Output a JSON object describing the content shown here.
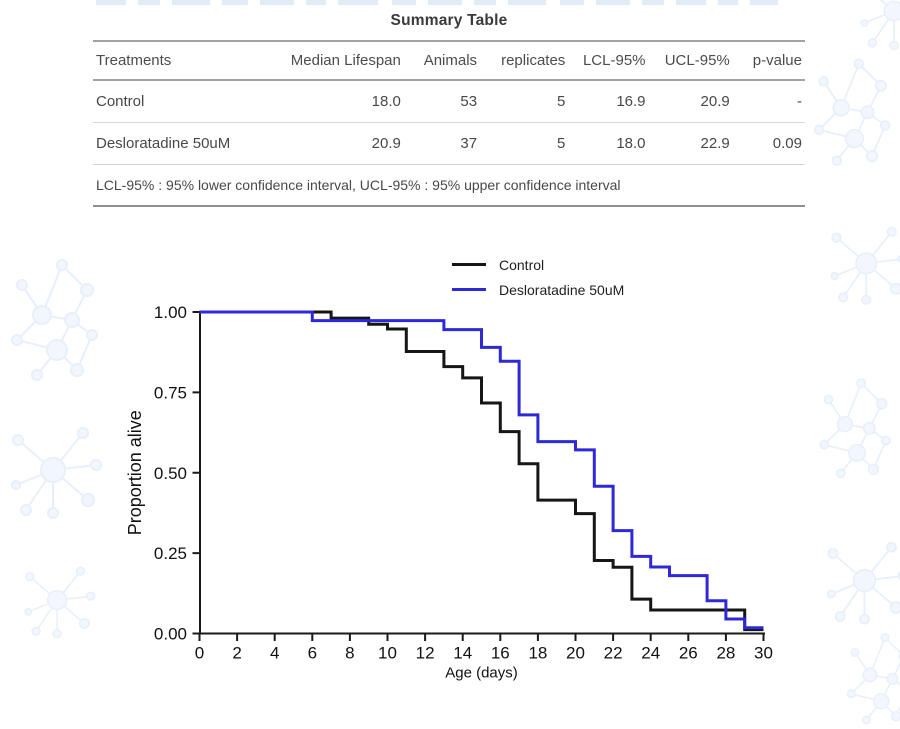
{
  "table": {
    "title": "Summary Table",
    "columns": [
      "Treatments",
      "Median Lifespan",
      "Animals",
      "replicates",
      "LCL-95%",
      "UCL-95%",
      "p-value"
    ],
    "rows": [
      {
        "treatment": "Control",
        "median": "18.0",
        "animals": "53",
        "replicates": "5",
        "lcl": "16.9",
        "ucl": "20.9",
        "pvalue": "-"
      },
      {
        "treatment": "Desloratadine 50uM",
        "median": "20.9",
        "animals": "37",
        "replicates": "5",
        "lcl": "18.0",
        "ucl": "22.9",
        "pvalue": "0.09"
      }
    ],
    "footnote": "LCL-95% : 95% lower confidence interval, UCL-95% : 95% upper confidence interval"
  },
  "chart_data": {
    "type": "line",
    "subtype": "kaplan-meier-step-survival",
    "title": "",
    "xlabel": "Age (days)",
    "ylabel": "Proportion alive",
    "xlim": [
      0,
      30
    ],
    "ylim": [
      0,
      1
    ],
    "x_ticks": [
      0,
      2,
      4,
      6,
      8,
      10,
      12,
      14,
      16,
      18,
      20,
      22,
      24,
      26,
      28,
      30
    ],
    "y_ticks": [
      0,
      0.25,
      0.5,
      0.75,
      1
    ],
    "grid": false,
    "legend_position": "top-center",
    "axis_color": "#1a1a1a",
    "series": [
      {
        "name": "Control",
        "color": "#161616",
        "steps": [
          [
            0,
            1.0
          ],
          [
            7,
            0.981
          ],
          [
            9,
            0.962
          ],
          [
            10,
            0.947
          ],
          [
            11,
            0.877
          ],
          [
            13,
            0.83
          ],
          [
            14,
            0.795
          ],
          [
            15,
            0.717
          ],
          [
            16,
            0.628
          ],
          [
            17,
            0.528
          ],
          [
            18,
            0.415
          ],
          [
            20,
            0.373
          ],
          [
            21,
            0.227
          ],
          [
            22,
            0.206
          ],
          [
            23,
            0.107
          ],
          [
            24,
            0.073
          ],
          [
            29,
            0.012
          ],
          [
            30,
            0.012
          ]
        ]
      },
      {
        "name": "Desloratadine 50uM",
        "color": "#2e28d9",
        "steps": [
          [
            0,
            1.0
          ],
          [
            6,
            0.973
          ],
          [
            13,
            0.945
          ],
          [
            15,
            0.89
          ],
          [
            16,
            0.847
          ],
          [
            17,
            0.68
          ],
          [
            18,
            0.597
          ],
          [
            20,
            0.571
          ],
          [
            21,
            0.458
          ],
          [
            22,
            0.32
          ],
          [
            23,
            0.24
          ],
          [
            24,
            0.207
          ],
          [
            25,
            0.18
          ],
          [
            27,
            0.102
          ],
          [
            28,
            0.045
          ],
          [
            29,
            0.018
          ],
          [
            30,
            0.018
          ]
        ]
      }
    ]
  }
}
